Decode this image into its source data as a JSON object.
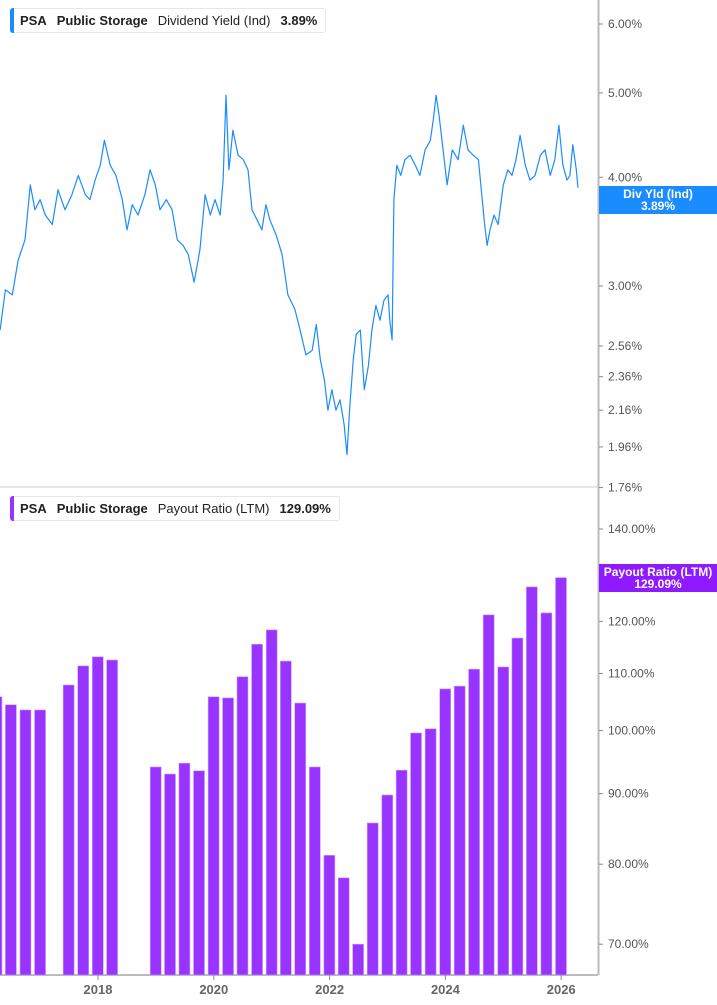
{
  "chart_data": [
    {
      "type": "line",
      "legend": {
        "ticker": "PSA",
        "company": "Public Storage",
        "metric": "Dividend Yield (Ind)",
        "value": "3.89%"
      },
      "last_label": {
        "name": "Div Yld (Ind)",
        "value": "3.89%"
      },
      "color": "#1a8cff",
      "y_scale": "log",
      "ylim": [
        1.76,
        6.4
      ],
      "y_ticks": [
        "6.00%",
        "5.00%",
        "4.00%",
        "3.00%",
        "2.56%",
        "2.36%",
        "2.16%",
        "1.96%",
        "1.76%"
      ],
      "y_tick_values": [
        6.0,
        5.0,
        4.0,
        3.0,
        2.56,
        2.36,
        2.16,
        1.96,
        1.76
      ],
      "x": [
        2016.31,
        2016.4,
        2016.52,
        2016.62,
        2016.74,
        2016.83,
        2016.91,
        2017.0,
        2017.09,
        2017.21,
        2017.31,
        2017.43,
        2017.55,
        2017.66,
        2017.78,
        2017.86,
        2017.95,
        2018.04,
        2018.11,
        2018.21,
        2018.31,
        2018.42,
        2018.5,
        2018.59,
        2018.69,
        2018.81,
        2018.9,
        2018.99,
        2019.07,
        2019.18,
        2019.28,
        2019.37,
        2019.47,
        2019.56,
        2019.66,
        2019.76,
        2019.85,
        2019.94,
        2020.02,
        2020.11,
        2020.16,
        2020.21,
        2020.26,
        2020.33,
        2020.42,
        2020.51,
        2020.59,
        2020.66,
        2020.75,
        2020.83,
        2020.9,
        2020.97,
        2021.08,
        2021.18,
        2021.28,
        2021.4,
        2021.49,
        2021.59,
        2021.7,
        2021.77,
        2021.84,
        2021.91,
        2021.97,
        2022.04,
        2022.11,
        2022.18,
        2022.25,
        2022.3,
        2022.35,
        2022.41,
        2022.46,
        2022.53,
        2022.6,
        2022.67,
        2022.73,
        2022.8,
        2022.87,
        2022.94,
        2023.01,
        2023.04,
        2023.08,
        2023.11,
        2023.16,
        2023.23,
        2023.3,
        2023.39,
        2023.48,
        2023.56,
        2023.65,
        2023.74,
        2023.79,
        2023.84,
        2023.89,
        2023.96,
        2024.03,
        2024.12,
        2024.22,
        2024.31,
        2024.39,
        2024.48,
        2024.57,
        2024.62,
        2024.67,
        2024.72,
        2024.77,
        2024.84,
        2024.91,
        2025.0,
        2025.08,
        2025.15,
        2025.22,
        2025.29,
        2025.38,
        2025.46,
        2025.55,
        2025.64,
        2025.72,
        2025.81,
        2025.89,
        2025.96,
        2026.03,
        2026.1,
        2026.15,
        2026.2,
        2026.26,
        2026.29
      ],
      "values": [
        2.67,
        2.97,
        2.93,
        3.21,
        3.39,
        3.92,
        3.67,
        3.77,
        3.62,
        3.53,
        3.87,
        3.67,
        3.82,
        4.02,
        3.82,
        3.77,
        3.97,
        4.13,
        4.41,
        4.13,
        4.02,
        3.77,
        3.48,
        3.72,
        3.62,
        3.82,
        4.08,
        3.92,
        3.67,
        3.77,
        3.67,
        3.39,
        3.34,
        3.26,
        3.03,
        3.3,
        3.82,
        3.62,
        3.77,
        3.62,
        3.97,
        4.97,
        4.08,
        4.53,
        4.24,
        4.19,
        4.08,
        3.67,
        3.57,
        3.48,
        3.72,
        3.57,
        3.43,
        3.26,
        2.93,
        2.82,
        2.67,
        2.5,
        2.53,
        2.71,
        2.47,
        2.34,
        2.16,
        2.28,
        2.16,
        2.22,
        2.08,
        1.92,
        2.19,
        2.47,
        2.64,
        2.67,
        2.28,
        2.43,
        2.67,
        2.85,
        2.74,
        2.89,
        2.93,
        2.74,
        2.6,
        3.77,
        4.13,
        4.02,
        4.19,
        4.24,
        4.13,
        4.02,
        4.3,
        4.41,
        4.65,
        4.97,
        4.72,
        4.3,
        3.92,
        4.3,
        4.19,
        4.59,
        4.3,
        4.24,
        4.19,
        3.87,
        3.57,
        3.34,
        3.48,
        3.62,
        3.53,
        3.92,
        4.08,
        4.02,
        4.19,
        4.47,
        4.13,
        3.97,
        4.02,
        4.24,
        4.3,
        4.02,
        4.19,
        4.59,
        4.13,
        3.97,
        4.02,
        4.36,
        4.08,
        3.89
      ]
    },
    {
      "type": "bar",
      "legend": {
        "ticker": "PSA",
        "company": "Public Storage",
        "metric": "Payout Ratio (LTM)",
        "value": "129.09%"
      },
      "last_label": {
        "name": "Payout Ratio (LTM)",
        "value": "129.09%"
      },
      "color": "#9933ff",
      "y_scale": "log",
      "ylim": [
        66,
        145
      ],
      "y_ticks": [
        "140.00%",
        "120.00%",
        "110.00%",
        "100.00%",
        "90.00%",
        "80.00%",
        "70.00%"
      ],
      "y_tick_values": [
        140,
        120,
        110,
        100,
        90,
        80,
        70
      ],
      "categories": [
        "2016-03-31",
        "2016-06-30",
        "2016-09-30",
        "2016-12-31",
        "2017-06-30",
        "2017-09-30",
        "2017-12-31",
        "2018-03-31",
        "2018-12-31",
        "2019-03-31",
        "2019-06-30",
        "2019-09-30",
        "2019-12-31",
        "2020-03-31",
        "2020-06-30",
        "2020-09-30",
        "2020-12-31",
        "2021-03-31",
        "2021-06-30",
        "2021-09-30",
        "2021-12-31",
        "2022-03-31",
        "2022-06-30",
        "2022-09-30",
        "2022-12-31",
        "2023-03-31",
        "2023-06-30",
        "2023-09-30",
        "2023-12-31",
        "2024-03-31",
        "2024-06-30",
        "2024-09-30",
        "2024-12-31",
        "2025-03-31",
        "2025-06-30",
        "2025-09-30",
        "2025-12-31"
      ],
      "values": [
        105.8,
        104.4,
        103.5,
        103.5,
        107.9,
        111.4,
        113.1,
        112.5,
        94.1,
        93.0,
        94.7,
        93.5,
        105.8,
        105.6,
        109.4,
        115.5,
        118.3,
        112.3,
        104.7,
        94.1,
        81.2,
        78.2,
        70.0,
        85.7,
        89.8,
        93.6,
        99.6,
        100.3,
        107.2,
        107.7,
        110.8,
        121.3,
        111.2,
        116.7,
        127.1,
        121.7,
        129.09
      ],
      "x_ticks": [
        "2018",
        "2020",
        "2022",
        "2024",
        "2026"
      ],
      "x_tick_values": [
        2018,
        2020,
        2022,
        2024,
        2026
      ]
    }
  ]
}
